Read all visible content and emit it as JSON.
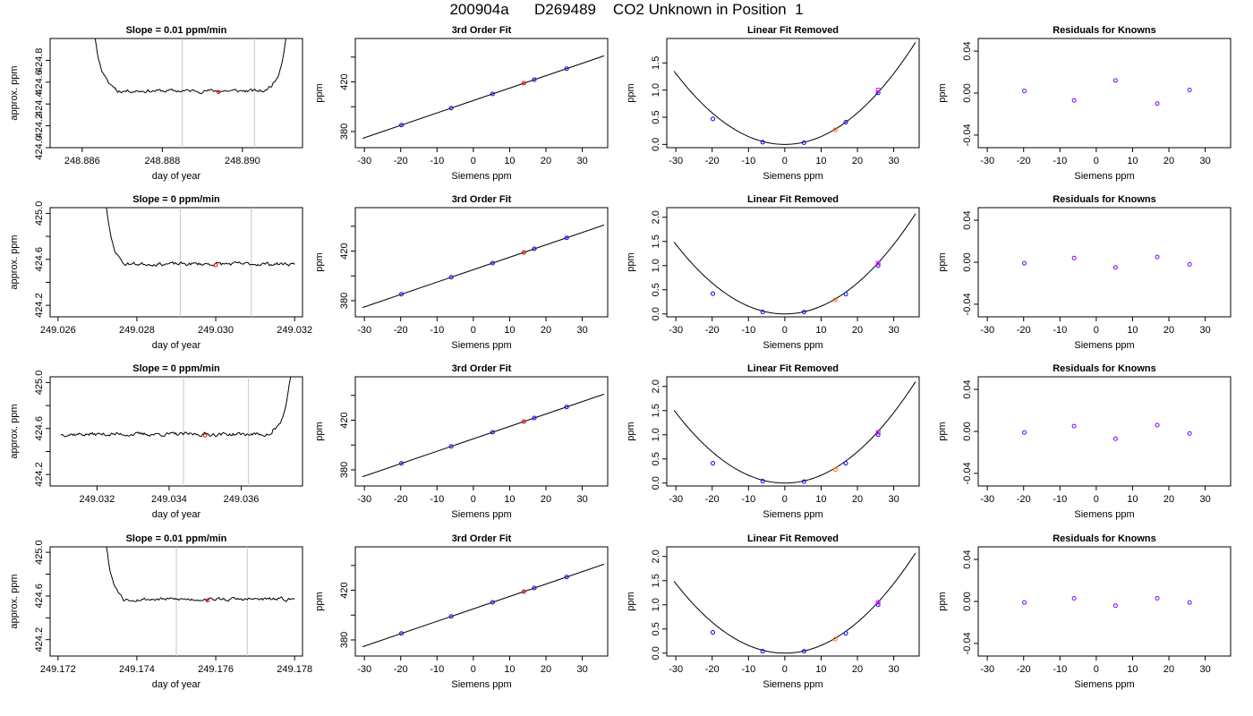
{
  "page_title": {
    "run": "200904a",
    "tank": "D269489",
    "description": "CO2 Unknown in Position  1"
  },
  "common": {
    "fit_xlabel": "Siemens ppm",
    "fit_ylabel": "ppm",
    "time_xlabel": "day of year",
    "time_ylabel": "approx. ppm",
    "fit_title": "3rd Order Fit",
    "linear_title": "Linear Fit Removed",
    "resid_title": "Residuals for Knowns",
    "colors": {
      "trace": "#000000",
      "window_line": "#c8c8c8",
      "known": "#0000ff",
      "known_alt": "#ff00ff",
      "unknown": "#ff0000",
      "unknown_fit": "#ff6600",
      "resid": "#7a00ff"
    }
  },
  "chart_data": [
    {
      "row": 1,
      "type": "line",
      "kind": "time",
      "title": "Slope =  0.01  ppm/min",
      "xlabel": "day of year",
      "ylabel": "approx. ppm",
      "xlim": [
        248.8852,
        248.8915
      ],
      "ylim": [
        424.0,
        425.0
      ],
      "xticks": [
        248.886,
        248.888,
        248.89
      ],
      "xtick_labels": [
        "248.886",
        "248.888",
        "248.890"
      ],
      "yticks": [
        424.0,
        424.2,
        424.4,
        424.6,
        424.8
      ],
      "ytick_labels": [
        "424.0",
        "424.2",
        "424.4",
        "424.6",
        "424.8"
      ],
      "trace": {
        "start": 248.8853,
        "end": 248.8912,
        "step": 3e-05,
        "baseline": 424.52,
        "noise": 0.012,
        "seed": 11,
        "rise_left": {
          "center": 248.8863,
          "width": 0.00018,
          "amplitude": 0.55
        },
        "rise_right": {
          "center": 248.8911,
          "width": 0.00016,
          "amplitude": 0.55
        }
      },
      "window_lines": [
        248.8885,
        248.8903
      ],
      "marker": {
        "x": 248.8894,
        "y": 424.51
      }
    },
    {
      "row": 1,
      "type": "line",
      "kind": "fit",
      "title": "3rd Order Fit",
      "xlabel": "Siemens ppm",
      "ylabel": "ppm",
      "xlim": [
        -32.5,
        37
      ],
      "ylim": [
        367,
        455
      ],
      "xticks": [
        -30,
        -20,
        -10,
        0,
        10,
        20,
        30
      ],
      "xtick_labels": [
        "-30",
        "-20",
        "-10",
        "0",
        "10",
        "20",
        "30"
      ],
      "yticks": [
        380,
        400,
        420,
        440
      ],
      "ytick_labels": [
        "380",
        "",
        "420",
        ""
      ],
      "curve": {
        "x0": -30.5,
        "x1": 36,
        "intercept": 405,
        "slope": 1.0
      },
      "knowns": [
        {
          "x": -19.8,
          "y": 385.2
        },
        {
          "x": -6.1,
          "y": 398.9
        },
        {
          "x": 5.3,
          "y": 410.3
        },
        {
          "x": 16.8,
          "y": 421.8
        },
        {
          "x": 25.7,
          "y": 430.7
        }
      ],
      "unknown": {
        "x": 13.9,
        "y": 418.9
      }
    },
    {
      "row": 1,
      "type": "scatter",
      "kind": "linear",
      "title": "Linear Fit Removed",
      "xlabel": "Siemens ppm",
      "ylabel": "ppm",
      "xlim": [
        -32.5,
        37
      ],
      "ylim": [
        -0.06,
        1.95
      ],
      "xticks": [
        -30,
        -20,
        -10,
        0,
        10,
        20,
        30
      ],
      "xtick_labels": [
        "-30",
        "-20",
        "-10",
        "0",
        "10",
        "20",
        "30"
      ],
      "yticks": [
        0.0,
        0.5,
        1.0,
        1.5
      ],
      "ytick_labels": [
        "0.0",
        "0.5",
        "1.0",
        "1.5"
      ],
      "curve": {
        "x0": -30.5,
        "x1": 36,
        "a": 0.00145
      },
      "knowns": [
        {
          "x": -19.8,
          "y": 0.47
        },
        {
          "x": -6.1,
          "y": 0.04
        },
        {
          "x": 5.3,
          "y": 0.03
        },
        {
          "x": 16.8,
          "y": 0.41
        },
        {
          "x": 25.7,
          "y": 0.95
        }
      ],
      "known_alt": {
        "x": 25.7,
        "y": 1.0
      },
      "unknown": {
        "x": 13.9,
        "y": 0.27
      }
    },
    {
      "row": 1,
      "type": "scatter",
      "kind": "resid",
      "title": "Residuals for Knowns",
      "xlabel": "Siemens ppm",
      "ylabel": "ppm",
      "xlim": [
        -32.5,
        37
      ],
      "ylim": [
        -0.052,
        0.052
      ],
      "xticks": [
        -30,
        -20,
        -10,
        0,
        10,
        20,
        30
      ],
      "xtick_labels": [
        "-30",
        "-20",
        "-10",
        "0",
        "10",
        "20",
        "30"
      ],
      "yticks": [
        -0.04,
        0.0,
        0.04
      ],
      "ytick_labels": [
        "-0.04",
        "0.00",
        "0.04"
      ],
      "points": [
        {
          "x": -19.8,
          "y": 0.002
        },
        {
          "x": -6.1,
          "y": -0.007
        },
        {
          "x": 5.3,
          "y": 0.012
        },
        {
          "x": 16.8,
          "y": -0.01
        },
        {
          "x": 25.7,
          "y": 0.003
        }
      ]
    },
    {
      "row": 2,
      "type": "line",
      "kind": "time",
      "title": "Slope =  0  ppm/min",
      "xlabel": "day of year",
      "ylabel": "approx. ppm",
      "xlim": [
        249.0258,
        249.0322
      ],
      "ylim": [
        424.1,
        425.05
      ],
      "xticks": [
        249.026,
        249.028,
        249.03,
        249.032
      ],
      "xtick_labels": [
        "249.026",
        "249.028",
        "249.030",
        "249.032"
      ],
      "yticks": [
        424.2,
        424.4,
        424.6,
        424.8,
        425.0
      ],
      "ytick_labels": [
        "424.2",
        "",
        "424.6",
        "",
        "425.0"
      ],
      "trace": {
        "start": 249.0266,
        "end": 249.032,
        "step": 3e-05,
        "baseline": 424.56,
        "noise": 0.012,
        "seed": 23,
        "rise_left": {
          "center": 249.0272,
          "width": 0.00015,
          "amplitude": 0.6
        }
      },
      "window_lines": [
        249.0291,
        249.0309
      ],
      "marker": {
        "x": 249.03,
        "y": 424.55
      }
    },
    {
      "row": 2,
      "type": "line",
      "kind": "fit",
      "title": "3rd Order Fit",
      "xlabel": "Siemens ppm",
      "ylabel": "ppm",
      "xlim": [
        -32.5,
        37
      ],
      "ylim": [
        367,
        455
      ],
      "xticks": [
        -30,
        -20,
        -10,
        0,
        10,
        20,
        30
      ],
      "xtick_labels": [
        "-30",
        "-20",
        "-10",
        "0",
        "10",
        "20",
        "30"
      ],
      "yticks": [
        380,
        400,
        420,
        440
      ],
      "ytick_labels": [
        "380",
        "",
        "420",
        ""
      ],
      "curve": {
        "x0": -30.5,
        "x1": 36,
        "intercept": 405,
        "slope": 1.0
      },
      "knowns": [
        {
          "x": -19.8,
          "y": 385.2
        },
        {
          "x": -6.1,
          "y": 398.9
        },
        {
          "x": 5.3,
          "y": 410.3
        },
        {
          "x": 16.8,
          "y": 421.8
        },
        {
          "x": 25.7,
          "y": 430.7
        }
      ],
      "unknown": {
        "x": 13.9,
        "y": 418.9
      }
    },
    {
      "row": 2,
      "type": "scatter",
      "kind": "linear",
      "title": "Linear Fit Removed",
      "xlabel": "Siemens ppm",
      "ylabel": "ppm",
      "xlim": [
        -32.5,
        37
      ],
      "ylim": [
        -0.06,
        2.2
      ],
      "xticks": [
        -30,
        -20,
        -10,
        0,
        10,
        20,
        30
      ],
      "xtick_labels": [
        "-30",
        "-20",
        "-10",
        "0",
        "10",
        "20",
        "30"
      ],
      "yticks": [
        0.0,
        0.5,
        1.0,
        1.5,
        2.0
      ],
      "ytick_labels": [
        "0.0",
        "0.5",
        "1.0",
        "1.5",
        "2.0"
      ],
      "curve": {
        "x0": -30.5,
        "x1": 36,
        "a": 0.0016
      },
      "knowns": [
        {
          "x": -19.8,
          "y": 0.42
        },
        {
          "x": -6.1,
          "y": 0.04
        },
        {
          "x": 5.3,
          "y": 0.04
        },
        {
          "x": 16.8,
          "y": 0.41
        },
        {
          "x": 25.7,
          "y": 1.0
        }
      ],
      "known_alt": {
        "x": 25.7,
        "y": 1.05
      },
      "unknown": {
        "x": 13.9,
        "y": 0.29
      }
    },
    {
      "row": 2,
      "type": "scatter",
      "kind": "resid",
      "title": "Residuals for Knowns",
      "xlabel": "Siemens ppm",
      "ylabel": "ppm",
      "xlim": [
        -32.5,
        37
      ],
      "ylim": [
        -0.052,
        0.052
      ],
      "xticks": [
        -30,
        -20,
        -10,
        0,
        10,
        20,
        30
      ],
      "xtick_labels": [
        "-30",
        "-20",
        "-10",
        "0",
        "10",
        "20",
        "30"
      ],
      "yticks": [
        -0.04,
        0.0,
        0.04
      ],
      "ytick_labels": [
        "-0.04",
        "0.00",
        "0.04"
      ],
      "points": [
        {
          "x": -19.8,
          "y": -0.001
        },
        {
          "x": -6.1,
          "y": 0.004
        },
        {
          "x": 5.3,
          "y": -0.005
        },
        {
          "x": 16.8,
          "y": 0.005
        },
        {
          "x": 25.7,
          "y": -0.002
        }
      ]
    },
    {
      "row": 3,
      "type": "line",
      "kind": "time",
      "title": "Slope =  0  ppm/min",
      "xlabel": "day of year",
      "ylabel": "approx. ppm",
      "xlim": [
        249.0307,
        249.0377
      ],
      "ylim": [
        424.1,
        425.05
      ],
      "xticks": [
        249.032,
        249.034,
        249.036
      ],
      "xtick_labels": [
        "249.032",
        "249.034",
        "249.036"
      ],
      "yticks": [
        424.2,
        424.4,
        424.6,
        424.8,
        425.0
      ],
      "ytick_labels": [
        "424.2",
        "",
        "424.6",
        "",
        "425.0"
      ],
      "trace": {
        "start": 249.031,
        "end": 249.0374,
        "step": 3e-05,
        "baseline": 424.55,
        "noise": 0.012,
        "seed": 37,
        "rise_right": {
          "center": 249.0374,
          "width": 0.00018,
          "amplitude": 0.6
        }
      },
      "window_lines": [
        249.0344,
        249.0362
      ],
      "marker": {
        "x": 249.035,
        "y": 424.54
      }
    },
    {
      "row": 3,
      "type": "line",
      "kind": "fit",
      "title": "3rd Order Fit",
      "xlabel": "Siemens ppm",
      "ylabel": "ppm",
      "xlim": [
        -32.5,
        37
      ],
      "ylim": [
        367,
        455
      ],
      "xticks": [
        -30,
        -20,
        -10,
        0,
        10,
        20,
        30
      ],
      "xtick_labels": [
        "-30",
        "-20",
        "-10",
        "0",
        "10",
        "20",
        "30"
      ],
      "yticks": [
        380,
        400,
        420,
        440
      ],
      "ytick_labels": [
        "380",
        "",
        "420",
        ""
      ],
      "curve": {
        "x0": -30.5,
        "x1": 36,
        "intercept": 405,
        "slope": 1.0
      },
      "knowns": [
        {
          "x": -19.8,
          "y": 385.2
        },
        {
          "x": -6.1,
          "y": 398.9
        },
        {
          "x": 5.3,
          "y": 410.3
        },
        {
          "x": 16.8,
          "y": 421.8
        },
        {
          "x": 25.7,
          "y": 430.7
        }
      ],
      "unknown": {
        "x": 13.9,
        "y": 418.9
      }
    },
    {
      "row": 3,
      "type": "scatter",
      "kind": "linear",
      "title": "Linear Fit Removed",
      "xlabel": "Siemens ppm",
      "ylabel": "ppm",
      "xlim": [
        -32.5,
        37
      ],
      "ylim": [
        -0.06,
        2.2
      ],
      "xticks": [
        -30,
        -20,
        -10,
        0,
        10,
        20,
        30
      ],
      "xtick_labels": [
        "-30",
        "-20",
        "-10",
        "0",
        "10",
        "20",
        "30"
      ],
      "yticks": [
        0.0,
        0.5,
        1.0,
        1.5,
        2.0
      ],
      "ytick_labels": [
        "0.0",
        "0.5",
        "1.0",
        "1.5",
        "2.0"
      ],
      "curve": {
        "x0": -30.5,
        "x1": 36,
        "a": 0.00162
      },
      "knowns": [
        {
          "x": -19.8,
          "y": 0.41
        },
        {
          "x": -6.1,
          "y": 0.04
        },
        {
          "x": 5.3,
          "y": 0.03
        },
        {
          "x": 16.8,
          "y": 0.41
        },
        {
          "x": 25.7,
          "y": 1.0
        }
      ],
      "known_alt": {
        "x": 25.7,
        "y": 1.05
      },
      "unknown": {
        "x": 13.9,
        "y": 0.28
      }
    },
    {
      "row": 3,
      "type": "scatter",
      "kind": "resid",
      "title": "Residuals for Knowns",
      "xlabel": "Siemens ppm",
      "ylabel": "ppm",
      "xlim": [
        -32.5,
        37
      ],
      "ylim": [
        -0.052,
        0.052
      ],
      "xticks": [
        -30,
        -20,
        -10,
        0,
        10,
        20,
        30
      ],
      "xtick_labels": [
        "-30",
        "-20",
        "-10",
        "0",
        "10",
        "20",
        "30"
      ],
      "yticks": [
        -0.04,
        0.0,
        0.04
      ],
      "ytick_labels": [
        "-0.04",
        "0.00",
        "0.04"
      ],
      "points": [
        {
          "x": -19.8,
          "y": -0.001
        },
        {
          "x": -6.1,
          "y": 0.005
        },
        {
          "x": 5.3,
          "y": -0.007
        },
        {
          "x": 16.8,
          "y": 0.006
        },
        {
          "x": 25.7,
          "y": -0.002
        }
      ]
    },
    {
      "row": 4,
      "type": "line",
      "kind": "time",
      "title": "Slope =  0.01  ppm/min",
      "xlabel": "day of year",
      "ylabel": "approx. ppm",
      "xlim": [
        249.1718,
        249.1782
      ],
      "ylim": [
        424.05,
        425.05
      ],
      "xticks": [
        249.172,
        249.174,
        249.176,
        249.178
      ],
      "xtick_labels": [
        "249.172",
        "249.174",
        "249.176",
        "249.178"
      ],
      "yticks": [
        424.2,
        424.4,
        424.6,
        424.8,
        425.0
      ],
      "ytick_labels": [
        "424.2",
        "",
        "424.6",
        "",
        "425.0"
      ],
      "trace": {
        "start": 249.1726,
        "end": 249.178,
        "step": 3e-05,
        "baseline": 424.57,
        "noise": 0.012,
        "seed": 53,
        "rise_left": {
          "center": 249.1732,
          "width": 0.00015,
          "amplitude": 0.6
        }
      },
      "window_lines": [
        249.175,
        249.1768
      ],
      "marker": {
        "x": 249.1758,
        "y": 424.56
      }
    },
    {
      "row": 4,
      "type": "line",
      "kind": "fit",
      "title": "3rd Order Fit",
      "xlabel": "Siemens ppm",
      "ylabel": "ppm",
      "xlim": [
        -32.5,
        37
      ],
      "ylim": [
        367,
        455
      ],
      "xticks": [
        -30,
        -20,
        -10,
        0,
        10,
        20,
        30
      ],
      "xtick_labels": [
        "-30",
        "-20",
        "-10",
        "0",
        "10",
        "20",
        "30"
      ],
      "yticks": [
        380,
        400,
        420,
        440
      ],
      "ytick_labels": [
        "380",
        "",
        "420",
        ""
      ],
      "curve": {
        "x0": -30.5,
        "x1": 36,
        "intercept": 405,
        "slope": 1.0
      },
      "knowns": [
        {
          "x": -19.8,
          "y": 385.2
        },
        {
          "x": -6.1,
          "y": 398.9
        },
        {
          "x": 5.3,
          "y": 410.3
        },
        {
          "x": 16.8,
          "y": 421.8
        },
        {
          "x": 25.7,
          "y": 430.7
        }
      ],
      "unknown": {
        "x": 13.9,
        "y": 418.9
      }
    },
    {
      "row": 4,
      "type": "scatter",
      "kind": "linear",
      "title": "Linear Fit Removed",
      "xlabel": "Siemens ppm",
      "ylabel": "ppm",
      "xlim": [
        -32.5,
        37
      ],
      "ylim": [
        -0.06,
        2.2
      ],
      "xticks": [
        -30,
        -20,
        -10,
        0,
        10,
        20,
        30
      ],
      "xtick_labels": [
        "-30",
        "-20",
        "-10",
        "0",
        "10",
        "20",
        "30"
      ],
      "yticks": [
        0.0,
        0.5,
        1.0,
        1.5,
        2.0
      ],
      "ytick_labels": [
        "0.0",
        "0.5",
        "1.0",
        "1.5",
        "2.0"
      ],
      "curve": {
        "x0": -30.5,
        "x1": 36,
        "a": 0.0016
      },
      "knowns": [
        {
          "x": -19.8,
          "y": 0.43
        },
        {
          "x": -6.1,
          "y": 0.04
        },
        {
          "x": 5.3,
          "y": 0.04
        },
        {
          "x": 16.8,
          "y": 0.41
        },
        {
          "x": 25.7,
          "y": 1.0
        }
      ],
      "known_alt": {
        "x": 25.7,
        "y": 1.05
      },
      "unknown": {
        "x": 13.9,
        "y": 0.29
      }
    },
    {
      "row": 4,
      "type": "scatter",
      "kind": "resid",
      "title": "Residuals for Knowns",
      "xlabel": "Siemens ppm",
      "ylabel": "ppm",
      "xlim": [
        -32.5,
        37
      ],
      "ylim": [
        -0.052,
        0.052
      ],
      "xticks": [
        -30,
        -20,
        -10,
        0,
        10,
        20,
        30
      ],
      "xtick_labels": [
        "-30",
        "-20",
        "-10",
        "0",
        "10",
        "20",
        "30"
      ],
      "yticks": [
        -0.04,
        0.0,
        0.04
      ],
      "ytick_labels": [
        "-0.04",
        "0.00",
        "0.04"
      ],
      "points": [
        {
          "x": -19.8,
          "y": -0.001
        },
        {
          "x": -6.1,
          "y": 0.003
        },
        {
          "x": 5.3,
          "y": -0.004
        },
        {
          "x": 16.8,
          "y": 0.003
        },
        {
          "x": 25.7,
          "y": -0.001
        }
      ]
    }
  ]
}
